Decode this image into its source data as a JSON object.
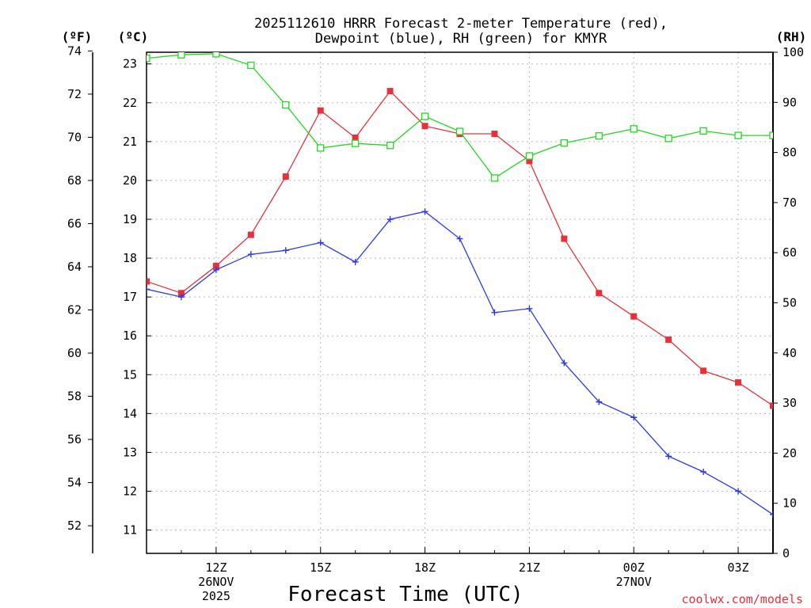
{
  "chart_data": {
    "type": "line",
    "title_line1": "2025112610 HRRR Forecast 2-meter Temperature (red),",
    "title_line2": "Dewpoint (blue), RH (green) for KMYR",
    "xlabel": "Forecast Time (UTC)",
    "credit": "coolwx.com/models",
    "units": {
      "fahrenheit": "(ºF)",
      "celsius": "(ºC)",
      "rh": "(RH)"
    },
    "hours": [
      10,
      11,
      12,
      13,
      14,
      15,
      16,
      17,
      18,
      19,
      20,
      21,
      22,
      23,
      24,
      25,
      26,
      27,
      28
    ],
    "xlim": [
      10,
      28
    ],
    "x_ticks": [
      {
        "hour": 12,
        "lines": [
          "12Z",
          "26NOV",
          "2025"
        ]
      },
      {
        "hour": 15,
        "lines": [
          "15Z"
        ]
      },
      {
        "hour": 18,
        "lines": [
          "18Z"
        ]
      },
      {
        "hour": 21,
        "lines": [
          "21Z"
        ]
      },
      {
        "hour": 24,
        "lines": [
          "00Z",
          "27NOV"
        ]
      },
      {
        "hour": 27,
        "lines": [
          "03Z"
        ]
      }
    ],
    "celsius_axis": {
      "ylim": [
        10.4,
        23.3
      ],
      "ticks": [
        11,
        12,
        13,
        14,
        15,
        16,
        17,
        18,
        19,
        20,
        21,
        22,
        23
      ]
    },
    "fahrenheit_axis": {
      "ticks": [
        52,
        54,
        56,
        58,
        60,
        62,
        64,
        66,
        68,
        70,
        72,
        74
      ]
    },
    "rh_axis": {
      "ylim": [
        0,
        100
      ],
      "ticks": [
        0,
        10,
        20,
        30,
        40,
        50,
        60,
        70,
        80,
        90,
        100
      ]
    },
    "series": [
      {
        "name": "Temperature",
        "units": "C",
        "color": "#e8303a",
        "marker": "filled-square",
        "values": [
          17.4,
          17.1,
          17.8,
          18.6,
          20.1,
          21.8,
          21.1,
          22.3,
          21.4,
          21.2,
          21.2,
          20.5,
          18.5,
          17.1,
          16.5,
          15.9,
          15.1,
          14.8,
          14.2
        ]
      },
      {
        "name": "Dewpoint",
        "units": "C",
        "color": "#2a3ae8",
        "marker": "plus",
        "values": [
          17.2,
          17.0,
          17.7,
          18.1,
          18.2,
          18.4,
          17.9,
          19.0,
          19.2,
          18.5,
          16.6,
          16.7,
          15.3,
          14.3,
          13.9,
          12.9,
          12.5,
          12.0,
          11.4
        ]
      },
      {
        "name": "RH",
        "units": "%",
        "color": "#22d822",
        "marker": "open-square",
        "values": [
          98.8,
          99.5,
          99.7,
          97.4,
          89.5,
          80.9,
          81.8,
          81.4,
          87.2,
          84.2,
          74.9,
          79.3,
          81.9,
          83.3,
          84.7,
          82.8,
          84.3,
          83.4,
          83.4
        ]
      }
    ]
  }
}
